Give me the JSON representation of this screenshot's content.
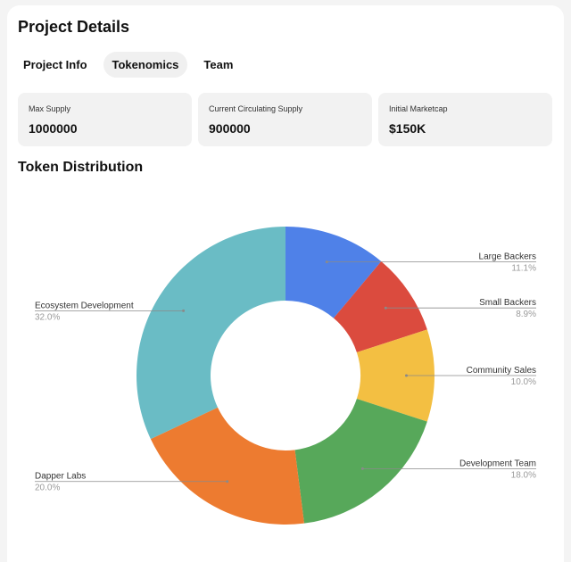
{
  "header": {
    "title": "Project Details"
  },
  "tabs": [
    {
      "label": "Project Info",
      "active": false
    },
    {
      "label": "Tokenomics",
      "active": true
    },
    {
      "label": "Team",
      "active": false
    }
  ],
  "stats": [
    {
      "label": "Max Supply",
      "value": "1000000"
    },
    {
      "label": "Current Circulating Supply",
      "value": "900000"
    },
    {
      "label": "Initial Marketcap",
      "value": "$150K"
    }
  ],
  "section": {
    "title": "Token Distribution"
  },
  "chart_data": {
    "type": "pie",
    "donut": true,
    "slices": [
      {
        "name": "Large Backers",
        "value": 11.1,
        "label": "11.1%",
        "color": "#4f81e8",
        "side": "right"
      },
      {
        "name": "Small Backers",
        "value": 8.9,
        "label": "8.9%",
        "color": "#db4b3e",
        "side": "right"
      },
      {
        "name": "Community Sales",
        "value": 10.0,
        "label": "10.0%",
        "color": "#f3bf42",
        "side": "right"
      },
      {
        "name": "Development Team",
        "value": 18.0,
        "label": "18.0%",
        "color": "#57a85a",
        "side": "right"
      },
      {
        "name": "Dapper Labs",
        "value": 20.0,
        "label": "20.0%",
        "color": "#ed7b30",
        "side": "left"
      },
      {
        "name": "Ecosystem Development",
        "value": 32.0,
        "label": "32.0%",
        "color": "#6abcc5",
        "side": "left"
      }
    ]
  }
}
